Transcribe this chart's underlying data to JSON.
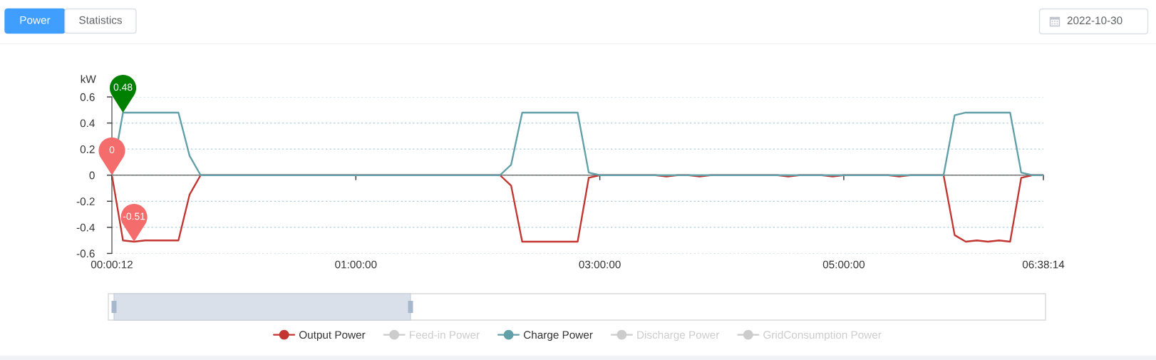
{
  "chart_data": {
    "type": "line",
    "ylabel": "kW",
    "categories": [
      "00:00:12",
      null,
      null,
      null,
      null,
      null,
      null,
      null,
      null,
      null,
      null,
      null,
      null,
      null,
      null,
      null,
      null,
      null,
      null,
      null,
      null,
      null,
      "01:00:00",
      null,
      null,
      null,
      null,
      null,
      null,
      null,
      null,
      null,
      null,
      null,
      null,
      null,
      null,
      null,
      null,
      null,
      null,
      null,
      null,
      null,
      "03:00:00",
      null,
      null,
      null,
      null,
      null,
      null,
      null,
      null,
      null,
      null,
      null,
      null,
      null,
      null,
      null,
      null,
      null,
      null,
      null,
      null,
      null,
      "05:00:00",
      null,
      null,
      null,
      null,
      null,
      null,
      null,
      null,
      null,
      null,
      null,
      null,
      null,
      null,
      null,
      null,
      null,
      "06:38:14"
    ],
    "series": [
      {
        "name": "Output Power",
        "color": "#c23531",
        "values": [
          0,
          -0.5,
          -0.51,
          -0.5,
          -0.5,
          -0.5,
          -0.5,
          -0.15,
          0,
          0,
          0,
          0,
          0,
          0,
          0,
          0,
          0,
          0,
          0,
          0,
          0,
          0,
          0,
          0,
          0,
          0,
          0,
          0,
          0,
          0,
          0,
          0,
          0,
          0,
          0,
          0,
          -0.08,
          -0.51,
          -0.51,
          -0.51,
          -0.51,
          -0.51,
          -0.51,
          -0.02,
          0,
          0,
          0,
          0,
          0,
          0,
          -0.01,
          0,
          0,
          -0.01,
          0,
          0,
          0,
          0,
          0,
          0,
          0,
          -0.01,
          0,
          0,
          0,
          -0.01,
          0,
          0,
          0,
          0,
          0,
          -0.01,
          0,
          0,
          0,
          0,
          -0.46,
          -0.51,
          -0.5,
          -0.51,
          -0.5,
          -0.51,
          -0.02,
          0,
          0
        ]
      },
      {
        "name": "Feed-in Power",
        "color": "#cccccc",
        "values": [
          null,
          null,
          null,
          null,
          null,
          null,
          null,
          null,
          null,
          null,
          null,
          null,
          null,
          null,
          null,
          null,
          null,
          null,
          null,
          null,
          null,
          null,
          null,
          null,
          null,
          null,
          null,
          null,
          null,
          null,
          null,
          null,
          null,
          null,
          null,
          null,
          null,
          null,
          null,
          null,
          null,
          null,
          null,
          null,
          null,
          null,
          null,
          null,
          null,
          null,
          null,
          null,
          null,
          null,
          null,
          null,
          null,
          null,
          null,
          null,
          null,
          null,
          null,
          null,
          null,
          null,
          null,
          null,
          null,
          null,
          null,
          null,
          null,
          null,
          null,
          null,
          null,
          null,
          null,
          null,
          null,
          null,
          null,
          null,
          null
        ]
      },
      {
        "name": "Charge Power",
        "color": "#61a0a8",
        "values": [
          0,
          0.48,
          0.48,
          0.48,
          0.48,
          0.48,
          0.48,
          0.15,
          0,
          0,
          0,
          0,
          0,
          0,
          0,
          0,
          0,
          0,
          0,
          0,
          0,
          0,
          0,
          0,
          0,
          0,
          0,
          0,
          0,
          0,
          0,
          0,
          0,
          0,
          0,
          0,
          0.08,
          0.48,
          0.48,
          0.48,
          0.48,
          0.48,
          0.48,
          0.02,
          0,
          0,
          0,
          0,
          0,
          0,
          0,
          0,
          0,
          0,
          0,
          0,
          0,
          0,
          0,
          0,
          0,
          0,
          0,
          0,
          0,
          0,
          0,
          0,
          0,
          0,
          0,
          0,
          0,
          0,
          0,
          0,
          0.46,
          0.48,
          0.48,
          0.48,
          0.48,
          0.48,
          0.02,
          0,
          0
        ]
      },
      {
        "name": "Discharge Power",
        "color": "#cccccc",
        "values": [
          null,
          null,
          null,
          null,
          null,
          null,
          null,
          null,
          null,
          null,
          null,
          null,
          null,
          null,
          null,
          null,
          null,
          null,
          null,
          null,
          null,
          null,
          null,
          null,
          null,
          null,
          null,
          null,
          null,
          null,
          null,
          null,
          null,
          null,
          null,
          null,
          null,
          null,
          null,
          null,
          null,
          null,
          null,
          null,
          null,
          null,
          null,
          null,
          null,
          null,
          null,
          null,
          null,
          null,
          null,
          null,
          null,
          null,
          null,
          null,
          null,
          null,
          null,
          null,
          null,
          null,
          null,
          null,
          null,
          null,
          null,
          null,
          null,
          null,
          null,
          null,
          null,
          null,
          null,
          null,
          null,
          null,
          null,
          null,
          null
        ]
      },
      {
        "name": "GridConsumption Power",
        "color": "#cccccc",
        "values": [
          null,
          null,
          null,
          null,
          null,
          null,
          null,
          null,
          null,
          null,
          null,
          null,
          null,
          null,
          null,
          null,
          null,
          null,
          null,
          null,
          null,
          null,
          null,
          null,
          null,
          null,
          null,
          null,
          null,
          null,
          null,
          null,
          null,
          null,
          null,
          null,
          null,
          null,
          null,
          null,
          null,
          null,
          null,
          null,
          null,
          null,
          null,
          null,
          null,
          null,
          null,
          null,
          null,
          null,
          null,
          null,
          null,
          null,
          null,
          null,
          null,
          null,
          null,
          null,
          null,
          null,
          null,
          null,
          null,
          null,
          null,
          null,
          null,
          null,
          null,
          null,
          null,
          null,
          null,
          null,
          null,
          null,
          null,
          null,
          null
        ]
      }
    ],
    "ylim": [
      -0.6,
      0.6
    ],
    "yticks": [
      -0.6,
      -0.4,
      -0.2,
      0,
      0.2,
      0.4,
      0.6
    ],
    "grid": "y",
    "legend": "bottom",
    "annotations": [
      "Power",
      "Statistics",
      "2022-10-30",
      {
        "text": "0.48",
        "y": 0.48
      },
      {
        "text": "0",
        "x": "00:00:12",
        "y": 0
      },
      {
        "text": "-0.51",
        "y": -0.51
      }
    ]
  }
}
